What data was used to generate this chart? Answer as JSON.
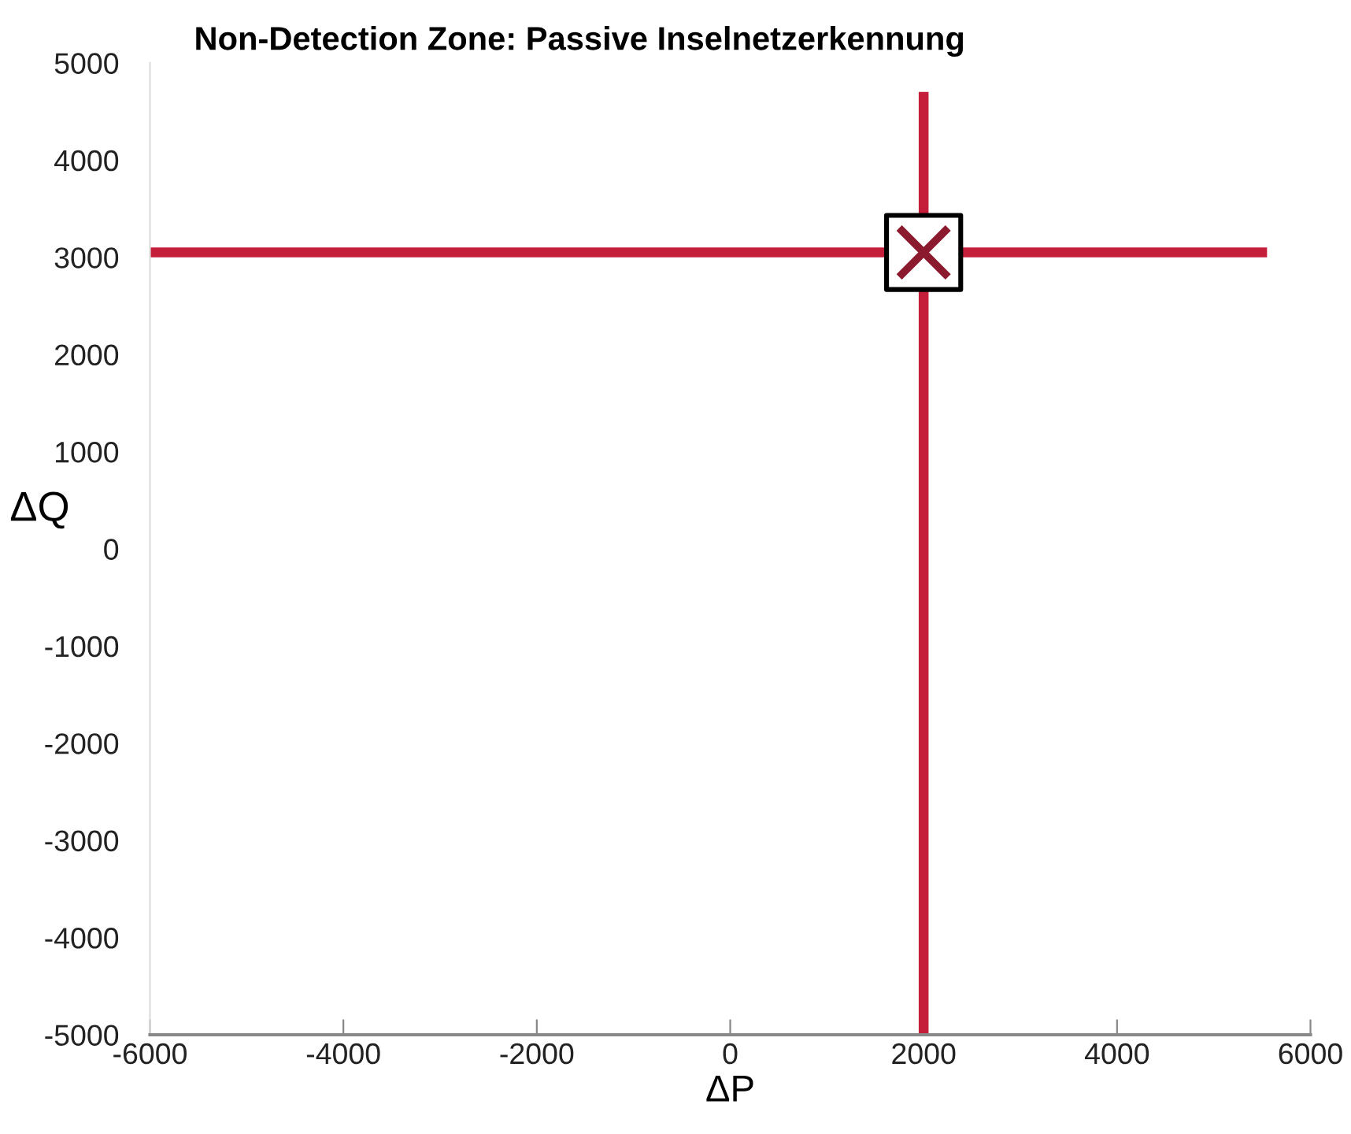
{
  "chart_data": {
    "type": "line",
    "title": "Non-Detection Zone: Passive Inselnetzerkennung",
    "xlabel": "ΔP",
    "ylabel": "ΔQ",
    "xlim": [
      -6000,
      6000
    ],
    "xticks": [
      -6000,
      -4000,
      -2000,
      0,
      2000,
      4000,
      6000
    ],
    "ylim": [
      -5000,
      5000
    ],
    "yticks": [
      -5000,
      -4000,
      -3000,
      -2000,
      -1000,
      0,
      1000,
      2000,
      3000,
      4000,
      5000
    ],
    "grid": false,
    "marker": "none",
    "line_style": "solid",
    "series": [
      {
        "color": "#c41e3a",
        "x": [
          -6000,
          5500
        ],
        "values": [
          3050,
          3050
        ]
      },
      {
        "color": "#c41e3a",
        "x": [
          2000,
          2000
        ],
        "values": [
          -5000,
          4650
        ]
      },
      {
        "type": "scatter",
        "color": "#8b1a2e",
        "marker": "cross",
        "x": [
          2000
        ],
        "values": [
          3050
        ]
      }
    ]
  }
}
